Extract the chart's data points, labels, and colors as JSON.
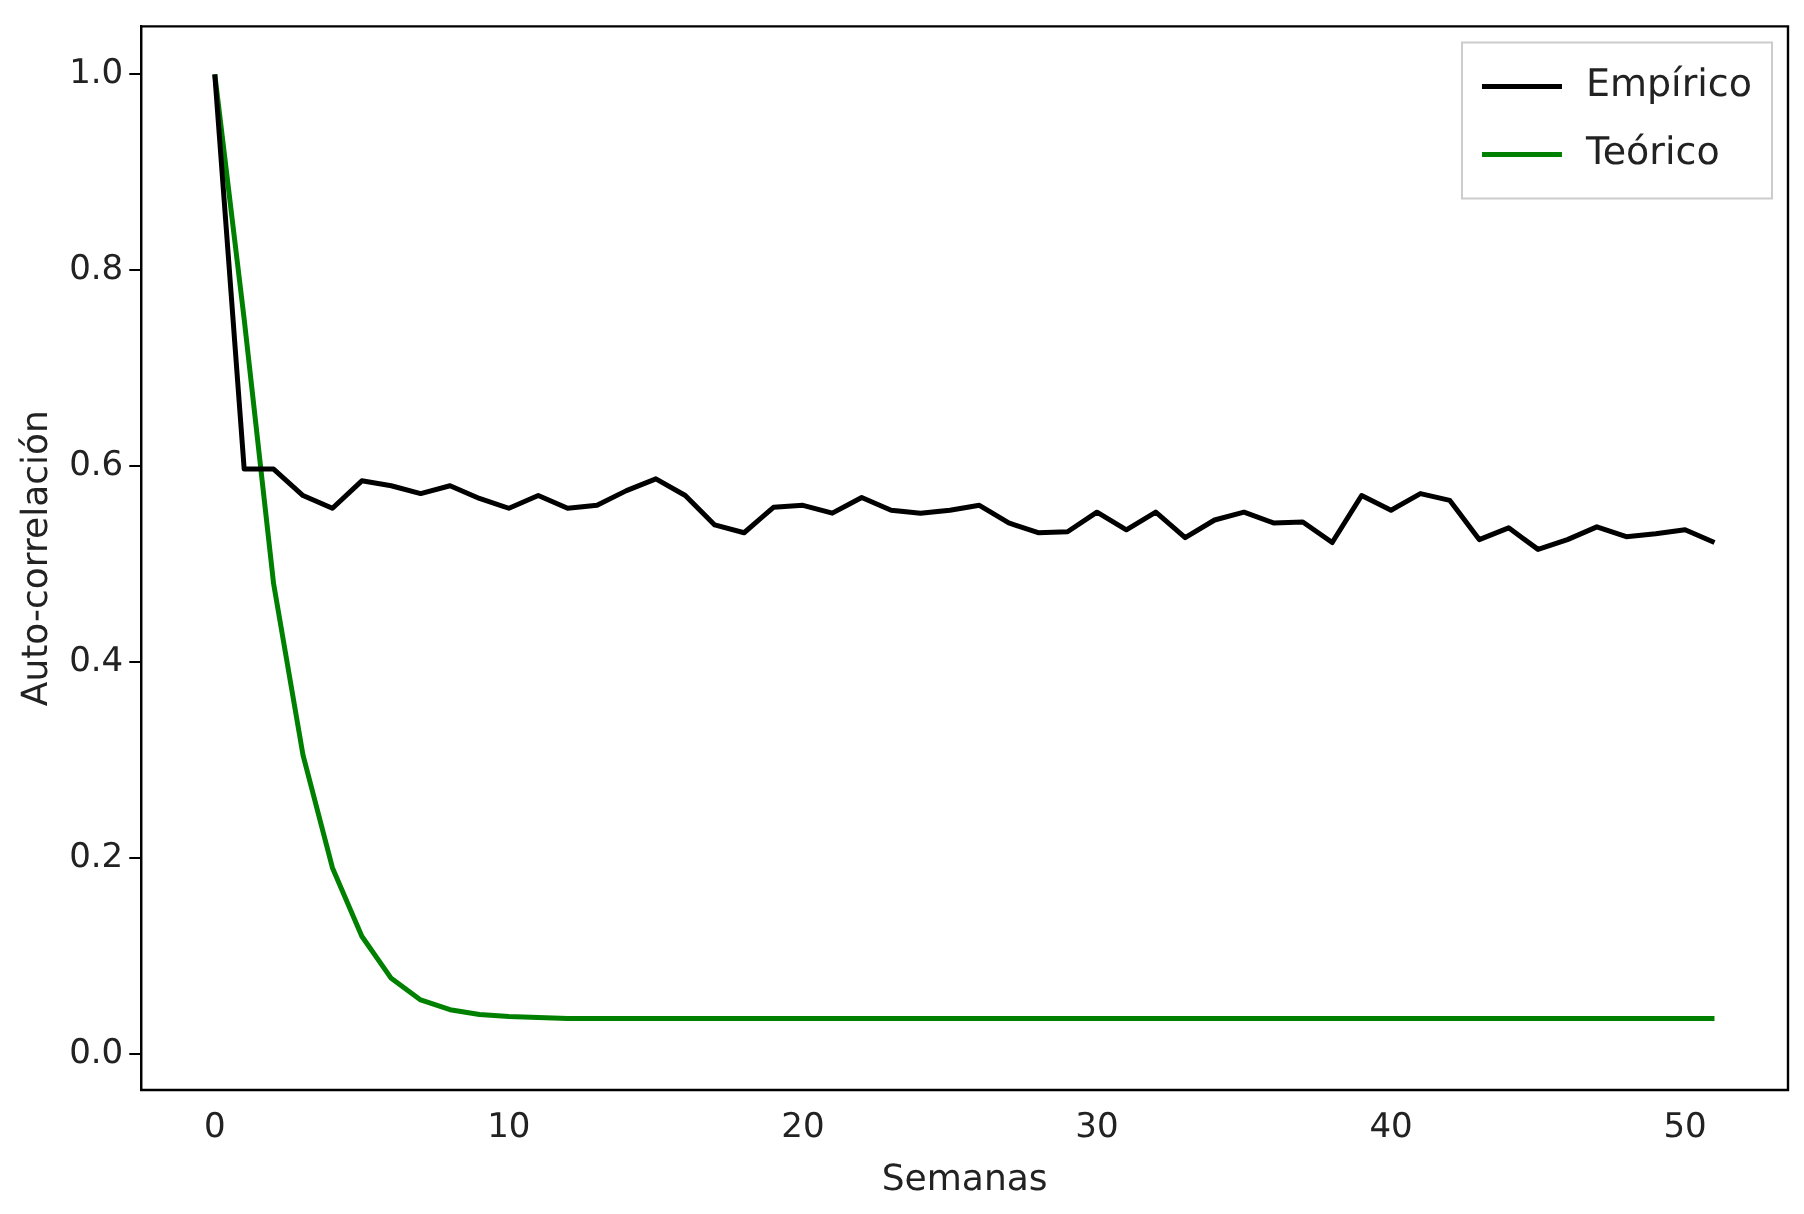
{
  "chart_data": {
    "type": "line",
    "xlabel": "Semanas",
    "ylabel": "Auto-correlación",
    "x": [
      0,
      1,
      2,
      3,
      4,
      5,
      6,
      7,
      8,
      9,
      10,
      11,
      12,
      13,
      14,
      15,
      16,
      17,
      18,
      19,
      20,
      21,
      22,
      23,
      24,
      25,
      26,
      27,
      28,
      29,
      30,
      31,
      32,
      33,
      34,
      35,
      36,
      37,
      38,
      39,
      40,
      41,
      42,
      43,
      44,
      45,
      46,
      47,
      48,
      49,
      50,
      51
    ],
    "series": [
      {
        "name": "Empírico",
        "color": "#000000",
        "values": [
          1.0,
          0.597,
          0.597,
          0.57,
          0.557,
          0.585,
          0.58,
          0.572,
          0.58,
          0.567,
          0.557,
          0.57,
          0.557,
          0.56,
          0.575,
          0.587,
          0.57,
          0.54,
          0.532,
          0.558,
          0.56,
          0.552,
          0.568,
          0.555,
          0.552,
          0.555,
          0.56,
          0.542,
          0.532,
          0.533,
          0.553,
          0.535,
          0.553,
          0.527,
          0.545,
          0.553,
          0.542,
          0.543,
          0.522,
          0.57,
          0.555,
          0.572,
          0.565,
          0.525,
          0.537,
          0.515,
          0.525,
          0.538,
          0.528,
          0.531,
          0.535,
          0.522
        ]
      },
      {
        "name": "Teórico",
        "color": "#008000",
        "values": [
          1.0,
          0.75,
          0.48,
          0.305,
          0.19,
          0.12,
          0.077,
          0.055,
          0.045,
          0.04,
          0.038,
          0.037,
          0.036,
          0.036,
          0.036,
          0.036,
          0.036,
          0.036,
          0.036,
          0.036,
          0.036,
          0.036,
          0.036,
          0.036,
          0.036,
          0.036,
          0.036,
          0.036,
          0.036,
          0.036,
          0.036,
          0.036,
          0.036,
          0.036,
          0.036,
          0.036,
          0.036,
          0.036,
          0.036,
          0.036,
          0.036,
          0.036,
          0.036,
          0.036,
          0.036,
          0.036,
          0.036,
          0.036,
          0.036,
          0.036,
          0.036,
          0.036
        ]
      }
    ],
    "xlim": [
      -2.5,
      53.5
    ],
    "xticks": [
      0,
      10,
      20,
      30,
      40,
      50
    ],
    "ylim": [
      -0.037,
      1.049
    ],
    "yticks": [
      {
        "value": 0,
        "label": "0.0"
      },
      {
        "value": 0.2,
        "label": "0.2"
      },
      {
        "value": 0.4,
        "label": "0.4"
      },
      {
        "value": 0.6,
        "label": "0.6"
      },
      {
        "value": 0.8,
        "label": "0.8"
      },
      {
        "value": 1.0,
        "label": "1.0"
      }
    ],
    "grid": false,
    "legend": "top right",
    "marker": "none",
    "line_style": "solid"
  }
}
